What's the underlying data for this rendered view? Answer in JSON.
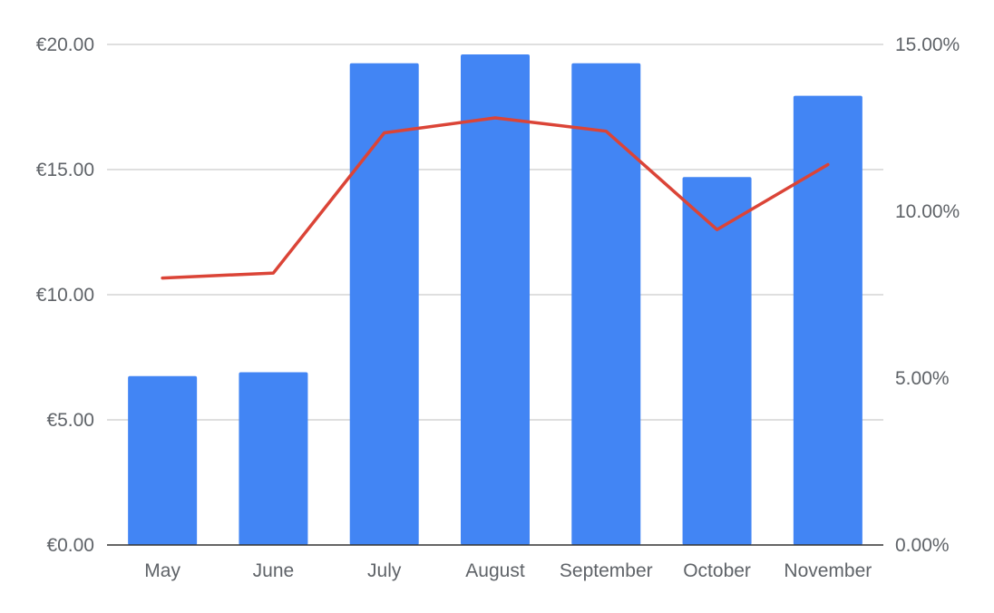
{
  "chart_data": {
    "type": "bar",
    "title": "",
    "xlabel": "",
    "ylabel": "",
    "categories": [
      "May",
      "June",
      "July",
      "August",
      "September",
      "October",
      "November"
    ],
    "series": [
      {
        "type": "bar",
        "axis": "left",
        "color": "#4285f4",
        "values": [
          6.75,
          6.9,
          19.25,
          19.6,
          19.25,
          14.7,
          17.95
        ]
      },
      {
        "type": "line",
        "axis": "right",
        "color": "#db4437",
        "values": [
          8.0,
          8.15,
          12.35,
          12.8,
          12.4,
          9.45,
          11.4
        ]
      }
    ],
    "y_left": {
      "min": 0,
      "max": 20,
      "ticks": [
        0,
        5,
        10,
        15,
        20
      ],
      "tick_labels": [
        "€0.00",
        "€5.00",
        "€10.00",
        "€15.00",
        "€20.00"
      ]
    },
    "y_right": {
      "min": 0,
      "max": 15,
      "ticks": [
        0,
        5,
        10,
        15
      ],
      "tick_labels": [
        "0.00%",
        "5.00%",
        "10.00%",
        "15.00%"
      ]
    },
    "grid": true,
    "legend": "none"
  }
}
